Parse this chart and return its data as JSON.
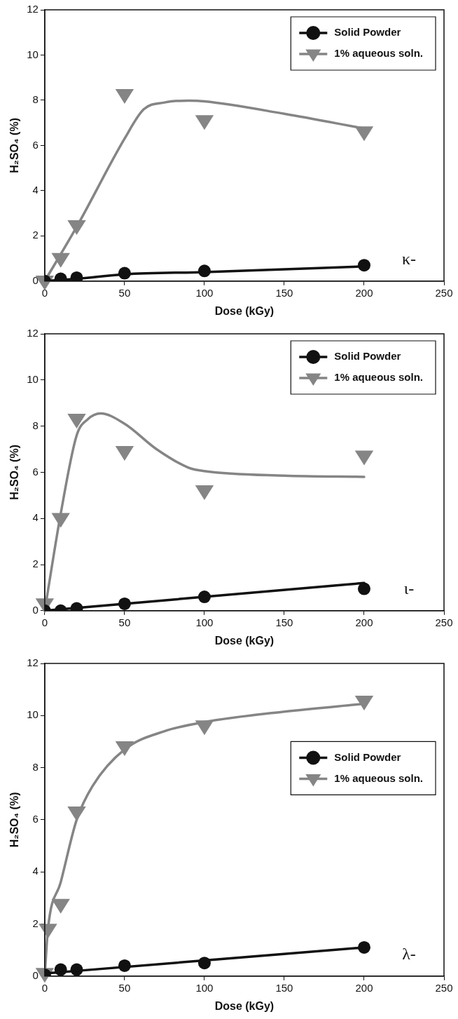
{
  "chart_data": [
    {
      "type": "scatter",
      "xlabel": "Dose (kGy)",
      "ylabel": "H₂SO₄ (%)",
      "xlim": [
        0,
        250
      ],
      "xticks": [
        0,
        50,
        100,
        150,
        200,
        250
      ],
      "ylim": [
        0,
        12
      ],
      "yticks": [
        0,
        2,
        4,
        6,
        8,
        10,
        12
      ],
      "grid": false,
      "legend": "top right",
      "annotations": [
        "κ-"
      ],
      "series": [
        {
          "name": "Solid Powder",
          "type": "scatter",
          "marker": "circle",
          "color": "#111111",
          "x": [
            0,
            10,
            20,
            50,
            100,
            200
          ],
          "values": [
            0,
            0.1,
            0.15,
            0.35,
            0.45,
            0.7
          ]
        },
        {
          "name": "1% aqueous soln.",
          "type": "scatter",
          "marker": "triangle",
          "color": "#858585",
          "x": [
            0,
            10,
            20,
            50,
            100,
            200
          ],
          "values": [
            0,
            1,
            2.45,
            8.25,
            7.1,
            6.6
          ]
        },
        {
          "type": "line",
          "marker": "none",
          "color": "#111111",
          "x": [
            0,
            20,
            50,
            100,
            200
          ],
          "values": [
            0,
            0.1,
            0.3,
            0.4,
            0.65
          ]
        },
        {
          "type": "line",
          "marker": "none",
          "color": "#858585",
          "x": [
            0,
            20,
            50,
            62,
            75,
            90,
            100,
            150,
            200
          ],
          "values": [
            0,
            2.4,
            6.3,
            7.6,
            7.9,
            7.98,
            7.95,
            7.4,
            6.75
          ]
        }
      ]
    },
    {
      "type": "scatter",
      "xlabel": "Dose (kGy)",
      "ylabel": "H₂SO₄ (%)",
      "xlim": [
        0,
        250
      ],
      "xticks": [
        0,
        50,
        100,
        150,
        200,
        250
      ],
      "ylim": [
        0,
        12
      ],
      "yticks": [
        0,
        2,
        4,
        6,
        8,
        10,
        12
      ],
      "grid": false,
      "legend": "top right",
      "annotations": [
        "ι-"
      ],
      "series": [
        {
          "name": "Solid Powder",
          "type": "scatter",
          "marker": "circle",
          "color": "#111111",
          "x": [
            0,
            10,
            20,
            50,
            100,
            200
          ],
          "values": [
            0,
            0,
            0.1,
            0.3,
            0.6,
            0.95
          ]
        },
        {
          "name": "1% aqueous soln.",
          "type": "scatter",
          "marker": "triangle",
          "color": "#858585",
          "x": [
            0,
            10,
            20,
            50,
            100,
            200
          ],
          "values": [
            0.3,
            4,
            8.3,
            6.9,
            5.2,
            6.7
          ]
        },
        {
          "type": "line",
          "marker": "none",
          "color": "#111111",
          "x": [
            0,
            200
          ],
          "values": [
            0,
            1.2
          ]
        },
        {
          "type": "line",
          "marker": "none",
          "color": "#858585",
          "x": [
            0,
            10,
            20,
            27,
            35,
            50,
            70,
            90,
            100,
            150,
            200
          ],
          "values": [
            0,
            4.2,
            7.6,
            8.3,
            8.55,
            8.1,
            7,
            6.2,
            6.05,
            5.85,
            5.8
          ]
        }
      ]
    },
    {
      "type": "scatter",
      "xlabel": "Dose (kGy)",
      "ylabel": "H₂SO₄ (%)",
      "xlim": [
        0,
        250
      ],
      "xticks": [
        0,
        50,
        100,
        150,
        200,
        250
      ],
      "ylim": [
        0,
        12
      ],
      "yticks": [
        0,
        2,
        4,
        6,
        8,
        10,
        12
      ],
      "grid": false,
      "legend": "right",
      "annotations": [
        "λ-"
      ],
      "series": [
        {
          "name": "Solid Powder",
          "type": "scatter",
          "marker": "circle",
          "color": "#111111",
          "x": [
            0,
            10,
            20,
            50,
            100,
            200
          ],
          "values": [
            0.05,
            0.25,
            0.25,
            0.4,
            0.5,
            1.1
          ]
        },
        {
          "name": "1% aqueous soln.",
          "type": "scatter",
          "marker": "triangle",
          "color": "#858585",
          "x": [
            0,
            2,
            10,
            20,
            50,
            100,
            200
          ],
          "values": [
            0.1,
            1.8,
            2.75,
            6.3,
            8.8,
            9.6,
            10.55
          ]
        },
        {
          "type": "line",
          "marker": "none",
          "color": "#111111",
          "x": [
            0,
            20,
            200
          ],
          "values": [
            0.1,
            0.2,
            1.1
          ]
        },
        {
          "type": "line",
          "marker": "none",
          "color": "#858585",
          "x": [
            0,
            2,
            10,
            20,
            30,
            50,
            75,
            100,
            150,
            200
          ],
          "values": [
            0,
            1.8,
            3.6,
            6,
            7.3,
            8.7,
            9.4,
            9.75,
            10.15,
            10.45
          ]
        }
      ]
    }
  ]
}
